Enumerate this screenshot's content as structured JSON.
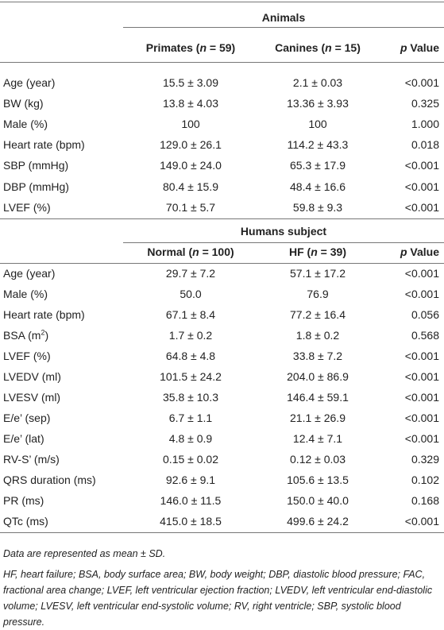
{
  "sections": [
    {
      "title": "Animals",
      "columns": [
        [
          {
            "text": "Primates ("
          },
          {
            "text": "n",
            "italic": true
          },
          {
            "text": " = 59)"
          }
        ],
        [
          {
            "text": "Canines ("
          },
          {
            "text": "n",
            "italic": true
          },
          {
            "text": " = 15)"
          }
        ],
        [
          {
            "text": "p",
            "italic": true
          },
          {
            "text": " Value"
          }
        ]
      ],
      "rows": [
        {
          "label": "Age (year)",
          "cells": [
            "15.5 ± 3.09",
            "2.1 ± 0.03",
            "<0.001"
          ]
        },
        {
          "label": "BW (kg)",
          "cells": [
            "13.8 ± 4.03",
            "13.36 ± 3.93",
            "0.325"
          ]
        },
        {
          "label": "Male (%)",
          "cells": [
            "100",
            "100",
            "1.000"
          ]
        },
        {
          "label": "Heart rate (bpm)",
          "cells": [
            "129.0 ± 26.1",
            "114.2 ± 43.3",
            "0.018"
          ]
        },
        {
          "label": "SBP (mmHg)",
          "cells": [
            "149.0 ± 24.0",
            "65.3 ± 17.9",
            "<0.001"
          ]
        },
        {
          "label": "DBP (mmHg)",
          "cells": [
            "80.4 ± 15.9",
            "48.4 ± 16.6",
            "<0.001"
          ]
        },
        {
          "label": "LVEF (%)",
          "cells": [
            "70.1 ± 5.7",
            "59.8 ± 9.3",
            "<0.001"
          ]
        }
      ]
    },
    {
      "title": "Humans subject",
      "columns": [
        [
          {
            "text": "Normal ("
          },
          {
            "text": "n",
            "italic": true
          },
          {
            "text": " = 100)"
          }
        ],
        [
          {
            "text": "HF ("
          },
          {
            "text": "n",
            "italic": true
          },
          {
            "text": " = 39)"
          }
        ],
        [
          {
            "text": "p",
            "italic": true
          },
          {
            "text": " Value"
          }
        ]
      ],
      "rows": [
        {
          "label": "Age (year)",
          "cells": [
            "29.7 ± 7.2",
            "57.1 ± 17.2",
            "<0.001"
          ]
        },
        {
          "label": "Male (%)",
          "cells": [
            "50.0",
            "76.9",
            "<0.001"
          ]
        },
        {
          "label": "Heart rate (bpm)",
          "cells": [
            "67.1 ± 8.4",
            "77.2 ± 16.4",
            "0.056"
          ]
        },
        {
          "label": [
            {
              "text": "BSA (m"
            },
            {
              "text": "2",
              "sup": true
            },
            {
              "text": ")"
            }
          ],
          "cells": [
            "1.7 ± 0.2",
            "1.8 ± 0.2",
            "0.568"
          ]
        },
        {
          "label": "LVEF (%)",
          "cells": [
            "64.8 ± 4.8",
            "33.8 ± 7.2",
            "<0.001"
          ]
        },
        {
          "label": "LVEDV (ml)",
          "cells": [
            "101.5 ± 24.2",
            "204.0 ± 86.9",
            "<0.001"
          ]
        },
        {
          "label": "LVESV (ml)",
          "cells": [
            "35.8 ± 10.3",
            "146.4 ± 59.1",
            "<0.001"
          ]
        },
        {
          "label": "E/e’ (sep)",
          "cells": [
            "6.7 ± 1.1",
            "21.1 ± 26.9",
            "<0.001"
          ]
        },
        {
          "label": "E/e’ (lat)",
          "cells": [
            "4.8 ± 0.9",
            "12.4 ± 7.1",
            "<0.001"
          ]
        },
        {
          "label": "RV-S’ (m/s)",
          "cells": [
            "0.15 ± 0.02",
            "0.12 ± 0.03",
            "0.329"
          ]
        },
        {
          "label": "QRS duration (ms)",
          "cells": [
            "92.6 ± 9.1",
            "105.6 ± 13.5",
            "0.102"
          ]
        },
        {
          "label": "PR (ms)",
          "cells": [
            "146.0 ± 11.5",
            "150.0 ± 40.0",
            "0.168"
          ]
        },
        {
          "label": "QTc (ms)",
          "cells": [
            "415.0 ± 18.5",
            "499.6 ± 24.2",
            "<0.001"
          ]
        }
      ]
    }
  ],
  "footnotes": [
    "Data are represented as mean ± SD.",
    "HF, heart failure; BSA, body surface area; BW, body weight; DBP, diastolic blood pressure; FAC, fractional area change; LVEF, left ventricular ejection fraction; LVEDV, left ventricular end-diastolic volume; LVESV, left ventricular end-systolic volume; RV, right ventricle; SBP, systolic blood pressure."
  ]
}
